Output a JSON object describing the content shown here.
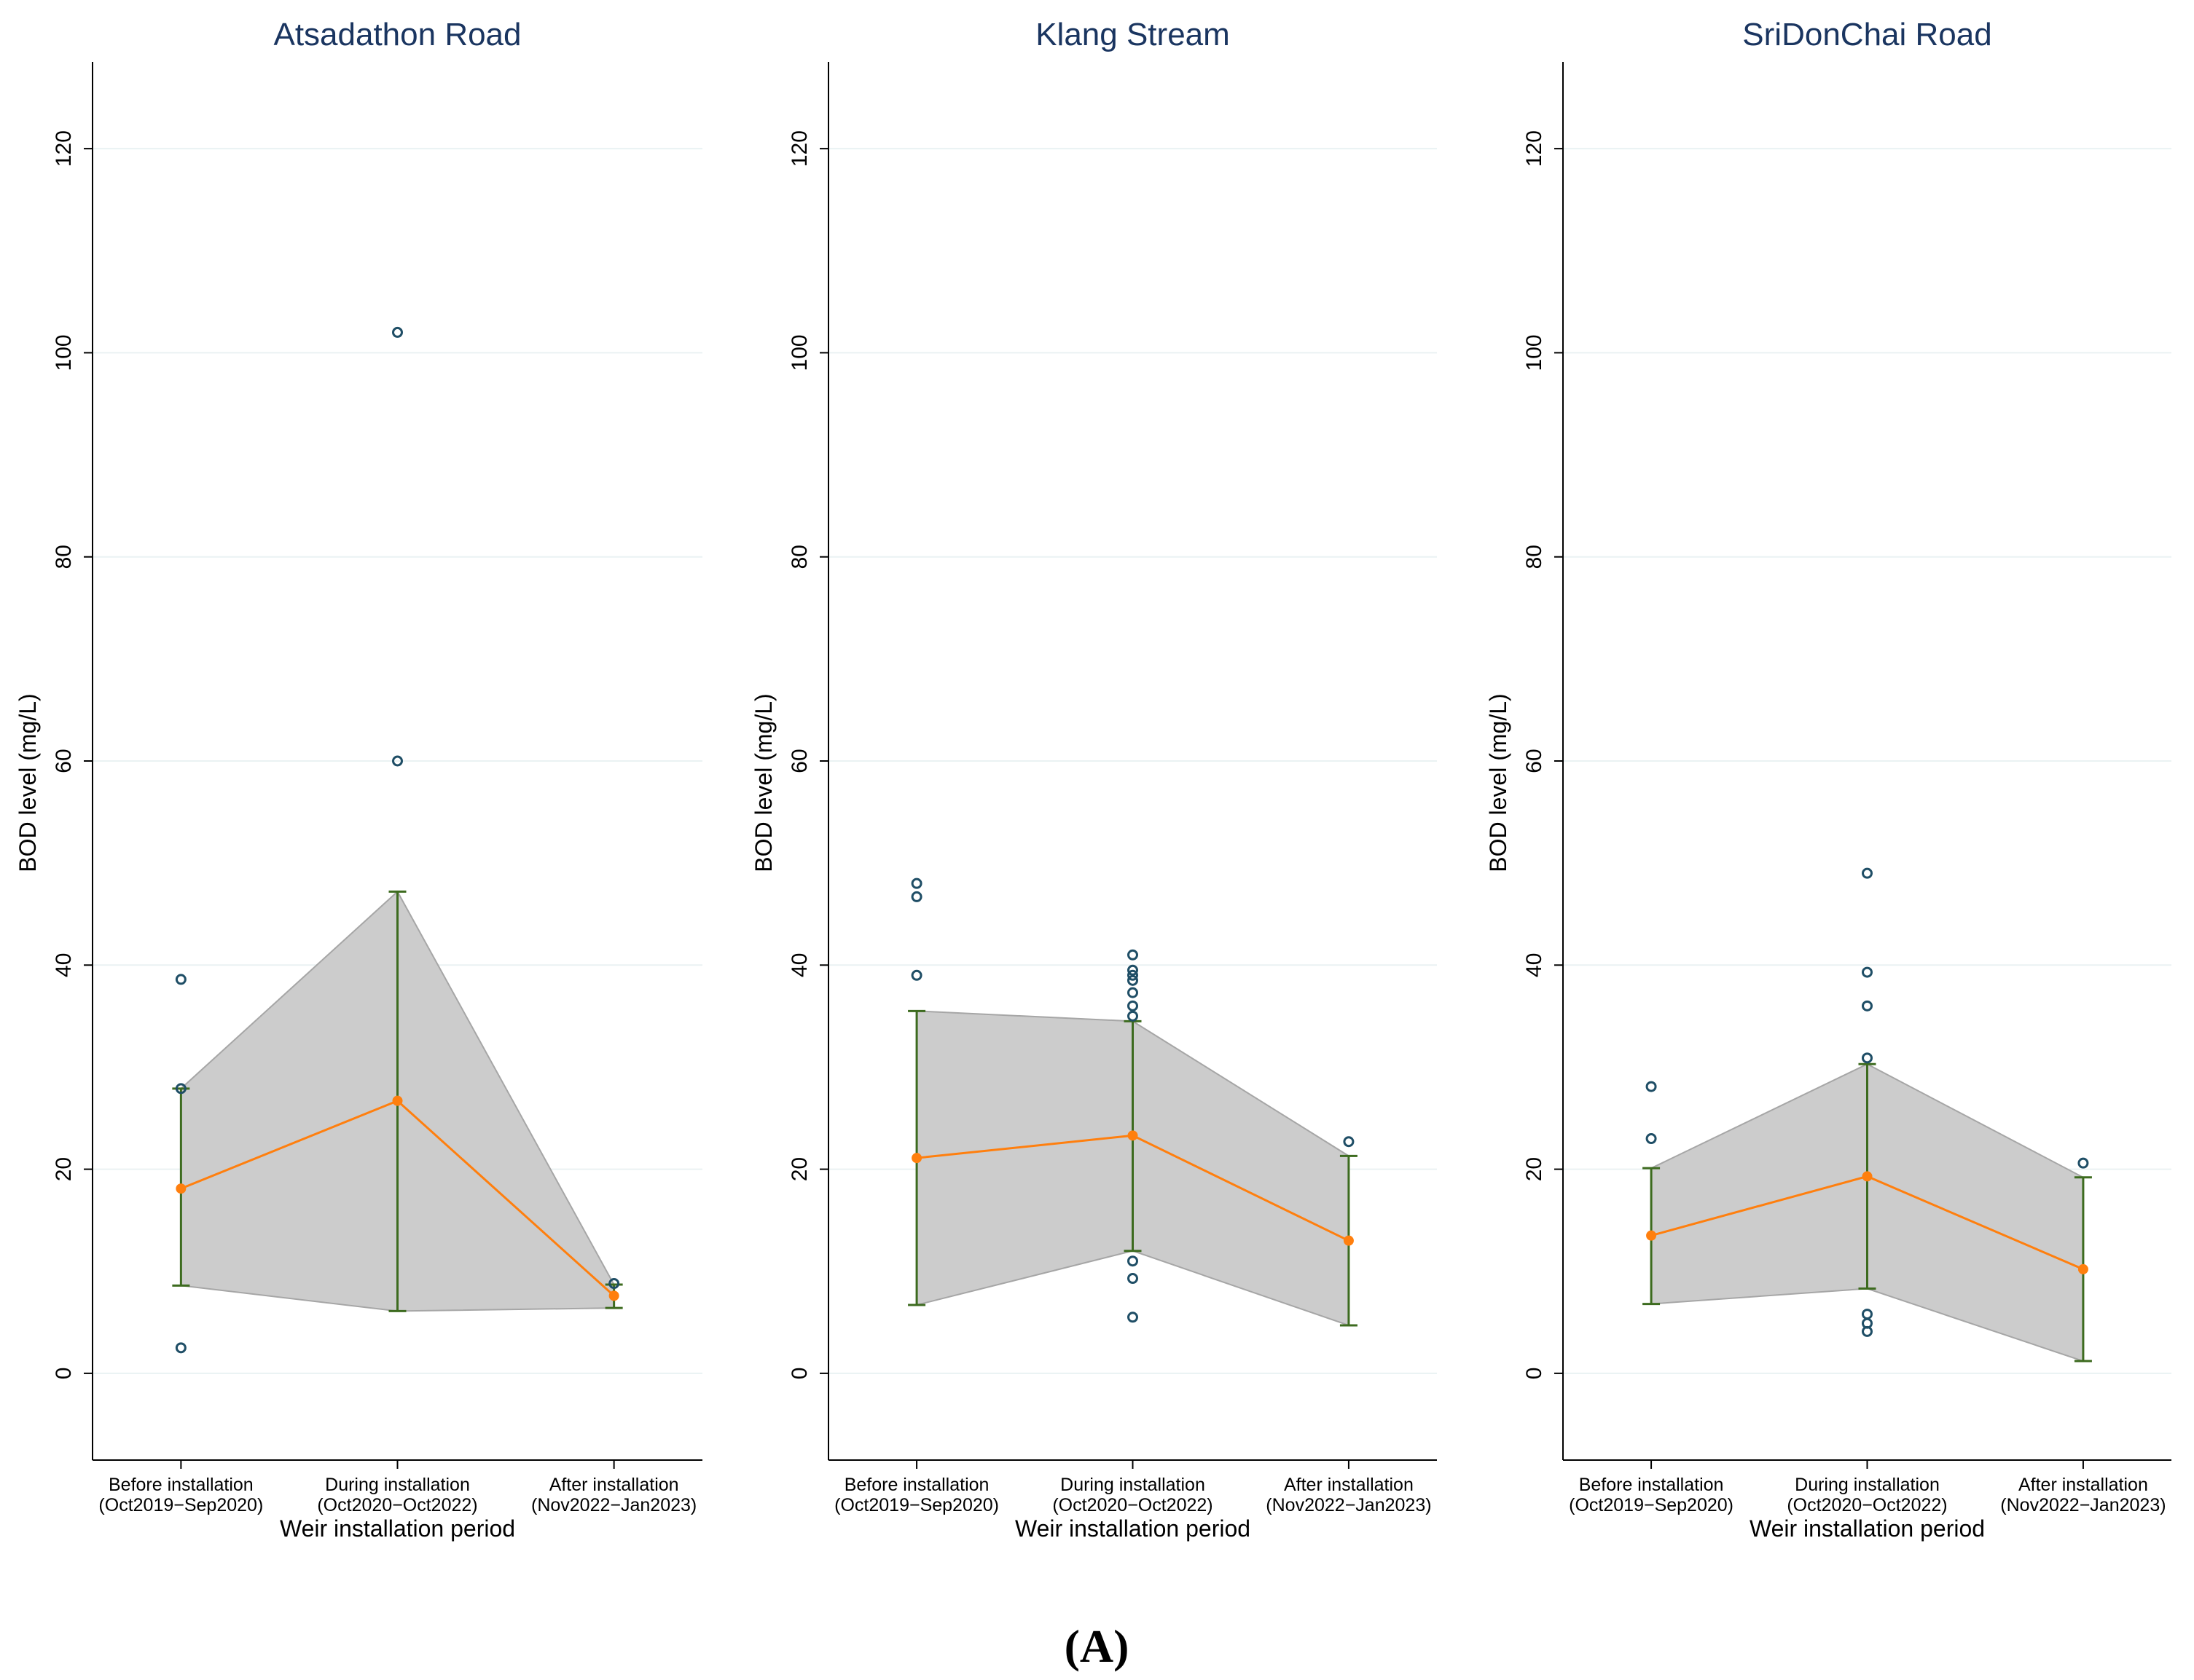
{
  "figure_label": "(A)",
  "colors": {
    "band_fill": "#cccccc",
    "band_stroke": "#a6a6a6",
    "mean_line": "#ff7f0e",
    "error_bar": "#3d6b1f",
    "outlier": "#1f4e66",
    "grid": "#eaf2f3",
    "title": "#1a3560"
  },
  "chart_data": [
    {
      "type": "line",
      "title": "Atsadathon Road",
      "xlabel": "Weir installation period",
      "ylabel": "BOD level (mg/L)",
      "ylim": [
        -8.5,
        128.5
      ],
      "yticks": [
        0,
        20,
        40,
        60,
        80,
        100,
        120
      ],
      "grid": true,
      "categories": [
        {
          "line1": "Before installation",
          "line2": "(Oct2019−Sep2020)"
        },
        {
          "line1": "During installation",
          "line2": "(Oct2020−Oct2022)"
        },
        {
          "line1": "After installation",
          "line2": "(Nov2022−Jan2023)"
        }
      ],
      "mean": [
        18.1,
        26.7,
        7.6
      ],
      "lower": [
        8.6,
        6.1,
        6.4
      ],
      "upper": [
        27.9,
        47.2,
        8.7
      ],
      "outliers": [
        {
          "cat": 0,
          "values": [
            38.6,
            27.9,
            2.5
          ]
        },
        {
          "cat": 1,
          "values": [
            102.0,
            60.0
          ]
        },
        {
          "cat": 2,
          "values": [
            8.8
          ]
        }
      ]
    },
    {
      "type": "line",
      "title": "Klang Stream",
      "xlabel": "Weir installation period",
      "ylabel": "BOD level (mg/L)",
      "ylim": [
        -8.5,
        128.5
      ],
      "yticks": [
        0,
        20,
        40,
        60,
        80,
        100,
        120
      ],
      "grid": true,
      "categories": [
        {
          "line1": "Before installation",
          "line2": "(Oct2019−Sep2020)"
        },
        {
          "line1": "During installation",
          "line2": "(Oct2020−Oct2022)"
        },
        {
          "line1": "After installation",
          "line2": "(Nov2022−Jan2023)"
        }
      ],
      "mean": [
        21.1,
        23.3,
        13.0
      ],
      "lower": [
        6.7,
        12.0,
        4.7
      ],
      "upper": [
        35.5,
        34.5,
        21.3
      ],
      "outliers": [
        {
          "cat": 0,
          "values": [
            48.0,
            46.7,
            39.0
          ]
        },
        {
          "cat": 1,
          "values": [
            41.0,
            39.5,
            39.0,
            38.5,
            37.3,
            36.0,
            35.0,
            11.0,
            9.3,
            5.5
          ]
        },
        {
          "cat": 2,
          "values": [
            22.7
          ]
        }
      ]
    },
    {
      "type": "line",
      "title": "SriDonChai Road",
      "xlabel": "Weir installation period",
      "ylabel": "BOD level (mg/L)",
      "ylim": [
        -8.5,
        128.5
      ],
      "yticks": [
        0,
        20,
        40,
        60,
        80,
        100,
        120
      ],
      "grid": true,
      "categories": [
        {
          "line1": "Before installation",
          "line2": "(Oct2019−Sep2020)"
        },
        {
          "line1": "During installation",
          "line2": "(Oct2020−Oct2022)"
        },
        {
          "line1": "After installation",
          "line2": "(Nov2022−Jan2023)"
        }
      ],
      "mean": [
        13.5,
        19.3,
        10.2
      ],
      "lower": [
        6.8,
        8.3,
        1.2
      ],
      "upper": [
        20.1,
        30.3,
        19.2
      ],
      "outliers": [
        {
          "cat": 0,
          "values": [
            28.1,
            23.0
          ]
        },
        {
          "cat": 1,
          "values": [
            49.0,
            39.3,
            36.0,
            30.9,
            5.8,
            4.9,
            4.1
          ]
        },
        {
          "cat": 2,
          "values": [
            20.6
          ]
        }
      ]
    }
  ]
}
